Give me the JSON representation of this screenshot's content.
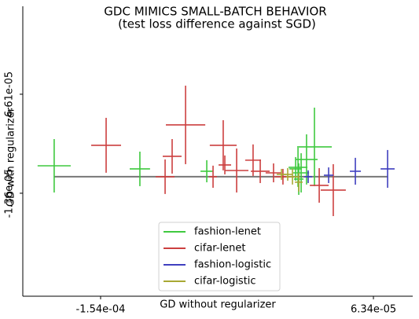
{
  "chart_data": {
    "type": "scatter",
    "title": "GDC MIMICS SMALL-BATCH BEHAVIOR",
    "subtitle": "(test loss difference against SGD)",
    "x_label": "GD without regularizer",
    "y_label": "GD with regularizer",
    "xlim": [
      -0.000216,
      9.47e-05
    ],
    "ylim": [
      -9.65e-05,
      0.0001369
    ],
    "xticks": [
      {
        "value": -0.000154,
        "label": "-1.54e-04"
      },
      {
        "value": 6.34e-05,
        "label": "6.34e-05"
      }
    ],
    "yticks": [
      {
        "value": -1.36e-05,
        "label": "-1.36e-05"
      },
      {
        "value": 6.61e-05,
        "label": "6.61e-05"
      }
    ],
    "legend": "lower center",
    "reference": {
      "color": "#555555",
      "x": [
        -0.000191,
        7.47e-05
      ],
      "values": [
        -3e-07,
        -3e-07
      ]
    },
    "series": [
      {
        "name": "fashion-lenet",
        "color": "#3fc93f",
        "x": [
          -0.000191,
          -0.0001227,
          -6.94e-05,
          3.3e-06,
          1.64e-05,
          1.01e-05,
          5.8e-06,
          3.9e-06,
          1.4e-06
        ],
        "values": [
          8.5e-06,
          6e-06,
          4.1e-06,
          7.3e-06,
          2.37e-05,
          1.36e-05,
          2.8e-06,
          -2.2e-06,
          6e-06
        ],
        "xerr": [
          1.32e-05,
          8.1e-06,
          5e-06,
          7.5e-06,
          1.38e-05,
          8.8e-06,
          6.3e-06,
          3.8e-06,
          5e-06
        ],
        "yerr": [
          2.15e-05,
          1.39e-05,
          8.9e-06,
          1.58e-05,
          3.16e-05,
          2.02e-05,
          1.58e-05,
          1.27e-05,
          9.5e-06
        ]
      },
      {
        "name": "cifar-lenet",
        "color": "#cc3f3f",
        "x": [
          -0.0001496,
          -9.7e-05,
          -8.63e-05,
          -0.0001026,
          -5.63e-05,
          -4.56e-05,
          -5.5e-05,
          -3.25e-05,
          -2.68e-05,
          -1.62e-05,
          2.02e-05,
          3.14e-05,
          -8.7e-06,
          -6.44e-05
        ],
        "values": [
          2.5e-05,
          1.61e-05,
          4.14e-05,
          -3e-07,
          2.5e-05,
          4.7e-06,
          9.2e-06,
          1.3e-05,
          4.1e-06,
          2.8e-06,
          -7.3e-06,
          -1.11e-05,
          -3e-07,
          -3e-07
        ],
        "xerr": [
          1.19e-05,
          7.5e-06,
          1.57e-05,
          7.5e-06,
          1.07e-05,
          9.4e-06,
          5e-06,
          6.3e-06,
          7.5e-06,
          6.3e-06,
          7.5e-06,
          1e-05,
          6.3e-06,
          3.1e-06
        ],
        "yerr": [
          2.21e-05,
          1.39e-05,
          3.16e-05,
          1.39e-05,
          2.02e-05,
          1.77e-05,
          7.6e-06,
          1.27e-05,
          9.5e-06,
          7.6e-06,
          1.39e-05,
          2.09e-05,
          6.3e-06,
          8.9e-06
        ]
      },
      {
        "name": "fashion-logistic",
        "color": "#3f3fbf",
        "x": [
          7.47e-05,
          4.9e-05,
          2.77e-05,
          1.14e-05
        ],
        "values": [
          6e-06,
          4.1e-06,
          9e-07,
          -3e-07
        ],
        "xerr": [
          5.6e-06,
          4.4e-06,
          3.8e-06,
          3.1e-06
        ],
        "yerr": [
          1.52e-05,
          1.08e-05,
          6.3e-06,
          5.1e-06
        ]
      },
      {
        "name": "cifar-logistic",
        "color": "#a8a833",
        "x": [
          -1.1e-06,
          -4.9e-06,
          3.9e-06,
          -9.9e-06
        ],
        "values": [
          -3e-07,
          1.6e-06,
          -4.7e-06,
          1.6e-06
        ],
        "xerr": [
          5e-06,
          3.8e-06,
          3.1e-06,
          3.8e-06
        ],
        "yerr": [
          6.3e-06,
          5.1e-06,
          7.6e-06,
          4.4e-06
        ]
      }
    ]
  }
}
